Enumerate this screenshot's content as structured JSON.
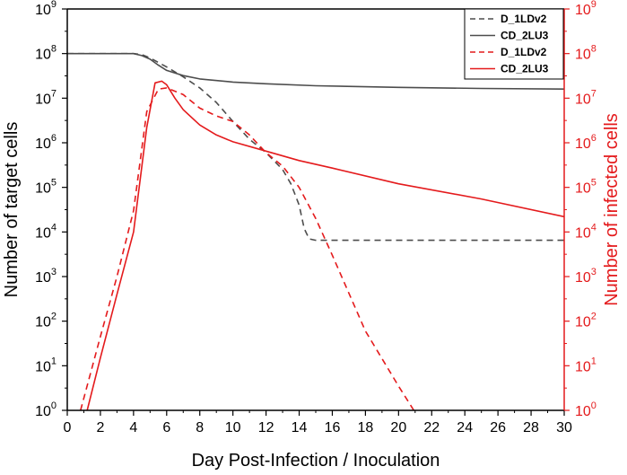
{
  "chart_data": {
    "type": "line",
    "xlabel": "Day Post-Infection / Inoculation",
    "ylabel_left": "Number of target cells",
    "ylabel_right": "Number of infected cells",
    "xlim": [
      0,
      30
    ],
    "x_ticks": [
      0,
      2,
      4,
      6,
      8,
      10,
      12,
      14,
      16,
      18,
      20,
      22,
      24,
      26,
      28,
      30
    ],
    "ylim": [
      1,
      1000000000
    ],
    "y_scale": "log",
    "y_tick_exponents": [
      0,
      1,
      2,
      3,
      4,
      5,
      6,
      7,
      8,
      9
    ],
    "y_tick_base": "10",
    "grid": false,
    "legend_position": "top-right",
    "colors": {
      "left_axis": "#000000",
      "right_axis": "#e41a1c",
      "target": "#4d4d4d",
      "infected": "#e41a1c"
    },
    "series": [
      {
        "name": "D_1LDv2",
        "axis": "left",
        "color": "#4d4d4d",
        "dash": "dashed",
        "x": [
          0,
          4,
          4.5,
          5,
          6,
          7,
          8,
          9,
          10,
          11,
          12,
          13,
          13.5,
          14,
          14.3,
          14.6,
          15,
          16,
          30
        ],
        "y": [
          100000000.0,
          100000000.0,
          95000000.0,
          80000000.0,
          50000000.0,
          30000000.0,
          17000000.0,
          8000000.0,
          3000000.0,
          1200000.0,
          600000.0,
          250000.0,
          120000.0,
          40000.0,
          12000.0,
          7000.0,
          6500.0,
          6500.0,
          6500.0
        ]
      },
      {
        "name": "CD_2LU3",
        "axis": "left",
        "color": "#4d4d4d",
        "dash": "solid",
        "x": [
          0,
          4,
          4.5,
          5,
          5.5,
          6,
          7,
          8,
          10,
          12,
          15,
          20,
          25,
          30
        ],
        "y": [
          100000000.0,
          100000000.0,
          90000000.0,
          75000000.0,
          55000000.0,
          42000000.0,
          32000000.0,
          27000000.0,
          23000000.0,
          21000000.0,
          19000000.0,
          17500000.0,
          16500000.0,
          16000000.0
        ]
      },
      {
        "name": "D_1LDv2",
        "axis": "right",
        "color": "#e41a1c",
        "dash": "dashed",
        "x": [
          0.8,
          2,
          3,
          4,
          4.8,
          5.5,
          6,
          7,
          8,
          9,
          10,
          11,
          12,
          13,
          14,
          15,
          16,
          18,
          20,
          21,
          22
        ],
        "y": [
          1,
          45,
          1000.0,
          30000.0,
          5000000.0,
          16000000.0,
          17000000.0,
          12000000.0,
          6000000.0,
          4000000.0,
          3000000.0,
          1500000.0,
          600000.0,
          300000.0,
          100000.0,
          20000.0,
          3000.0,
          60,
          3.5,
          0.9,
          0.25
        ]
      },
      {
        "name": "CD_2LU3",
        "axis": "right",
        "color": "#e41a1c",
        "dash": "solid",
        "x": [
          1.2,
          2,
          3,
          4,
          4.8,
          5.3,
          5.7,
          6,
          6.5,
          7,
          8,
          9,
          10,
          12,
          14,
          16,
          20,
          25,
          30
        ],
        "y": [
          1,
          15,
          400,
          10000.0,
          2200000.0,
          22000000.0,
          24000000.0,
          20000000.0,
          10000000.0,
          5500000.0,
          2500000.0,
          1500000.0,
          1050000.0,
          650000.0,
          400000.0,
          270000.0,
          120000.0,
          55000.0,
          22000.0
        ]
      }
    ]
  }
}
